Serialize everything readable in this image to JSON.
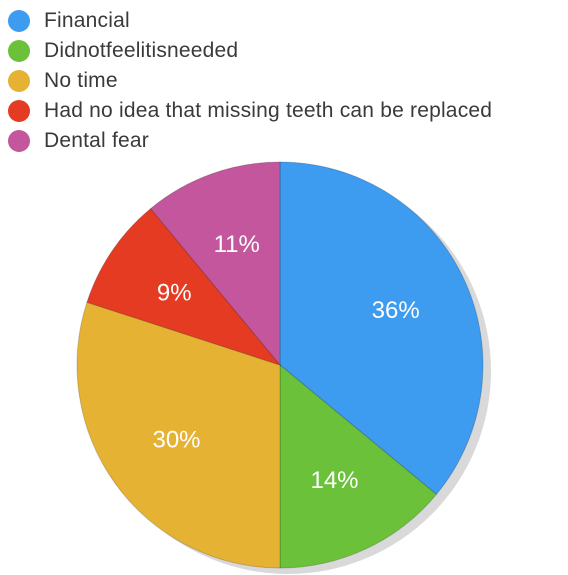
{
  "chart_data": {
    "type": "pie",
    "title": "",
    "legend_position": "top-left",
    "slices": [
      {
        "label": "Financial",
        "value": 36,
        "display": "36%",
        "color": "#3d9bf0"
      },
      {
        "label": "Didnotfeelitisneeded",
        "value": 14,
        "display": "14%",
        "color": "#6cc13a"
      },
      {
        "label": "No time",
        "value": 30,
        "display": "30%",
        "color": "#e6b233"
      },
      {
        "label": "Had no idea that missing teeth can be replaced",
        "value": 9,
        "display": "9%",
        "color": "#e53b23"
      },
      {
        "label": "Dental fear",
        "value": 11,
        "display": "11%",
        "color": "#c3569c"
      }
    ]
  }
}
